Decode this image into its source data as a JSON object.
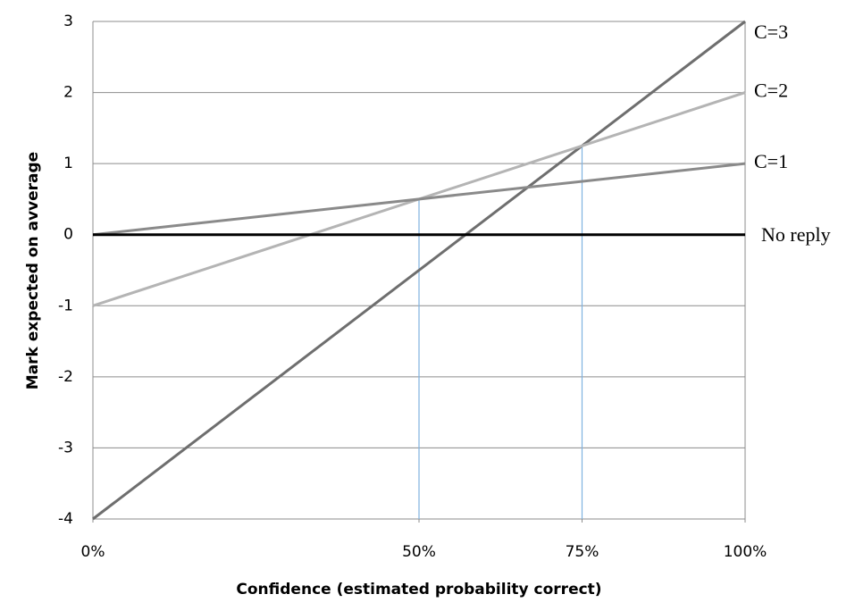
{
  "chart_data": {
    "type": "line",
    "xlabel": "Confidence (estimated probability correct)",
    "ylabel": "Mark expected on avverage",
    "x": [
      0,
      100
    ],
    "xlim": [
      0,
      100
    ],
    "xticks": [
      {
        "value": 0,
        "label": "0%"
      },
      {
        "value": 50,
        "label": "50%"
      },
      {
        "value": 75,
        "label": "75%"
      },
      {
        "value": 100,
        "label": "100%"
      }
    ],
    "ylim": [
      -4,
      3
    ],
    "yticks": [
      -4,
      -3,
      -2,
      -1,
      0,
      1,
      2,
      3
    ],
    "grid": true,
    "series": [
      {
        "name": "C=3",
        "color": "#6e6e6e",
        "values": [
          -4,
          3
        ]
      },
      {
        "name": "C=2",
        "color": "#b4b4b4",
        "values": [
          -1,
          2
        ]
      },
      {
        "name": "C=1",
        "color": "#8a8a8a",
        "values": [
          0,
          1
        ]
      },
      {
        "name": "No reply",
        "color": "#000000",
        "values": [
          0,
          0
        ]
      }
    ],
    "reference_lines": [
      {
        "x": 50,
        "top": 0.5,
        "color": "#7fb2e0"
      },
      {
        "x": 75,
        "top": 1.25,
        "color": "#7fb2e0"
      }
    ]
  }
}
